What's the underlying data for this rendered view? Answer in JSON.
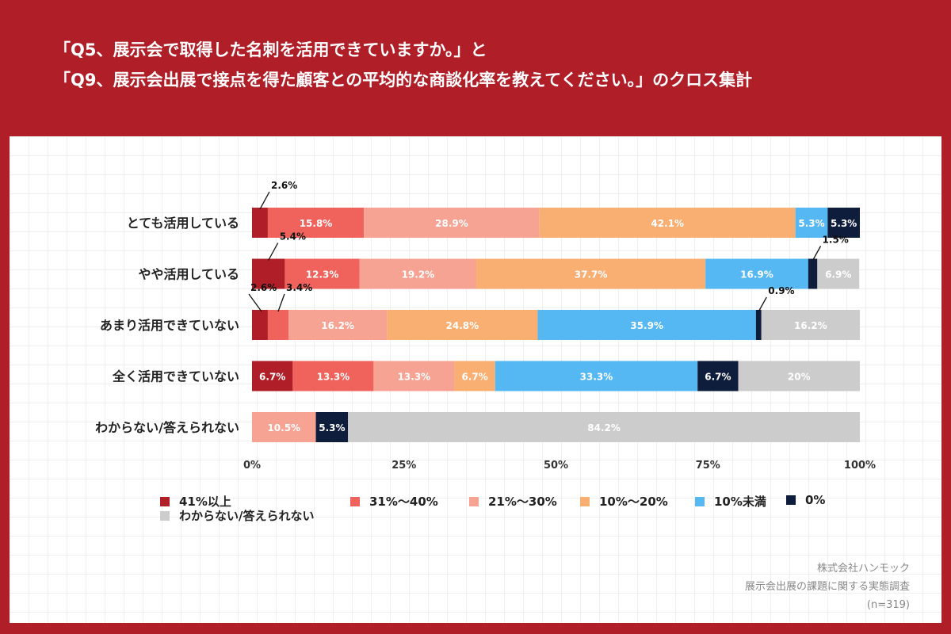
{
  "title": {
    "line1": "「Q5、展示会で取得した名刺を活用できていますか。」と",
    "line2": "「Q9、展示会出展で接点を得た顧客との平均的な商談化率を教えてください。」のクロス集計"
  },
  "chart_data": {
    "type": "bar",
    "orientation": "horizontal",
    "stacked": true,
    "categories": [
      "とても活用している",
      "やや活用している",
      "あまり活用できていない",
      "全く活用できていない",
      "わからない/答えられない"
    ],
    "series": [
      {
        "name": "41%以上",
        "color": "#b01f28",
        "values": [
          2.6,
          5.4,
          2.6,
          6.7,
          0
        ],
        "labels": [
          "2.6%",
          "5.4%",
          "2.6%",
          "6.7%",
          ""
        ]
      },
      {
        "name": "31%〜40%",
        "color": "#f0635c",
        "values": [
          15.8,
          12.3,
          3.4,
          13.3,
          0
        ],
        "labels": [
          "15.8%",
          "12.3%",
          "3.4%",
          "13.3%",
          ""
        ]
      },
      {
        "name": "21%〜30%",
        "color": "#f7a394",
        "values": [
          28.9,
          19.2,
          16.2,
          13.3,
          10.5
        ],
        "labels": [
          "28.9%",
          "19.2%",
          "16.2%",
          "13.3%",
          "10.5%"
        ]
      },
      {
        "name": "10%〜20%",
        "color": "#f9ae72",
        "values": [
          42.1,
          37.7,
          24.8,
          6.7,
          0
        ],
        "labels": [
          "42.1%",
          "37.7%",
          "24.8%",
          "6.7%",
          ""
        ]
      },
      {
        "name": "10%未満",
        "color": "#55b8f3",
        "values": [
          5.3,
          16.9,
          35.9,
          33.3,
          0
        ],
        "labels": [
          "5.3%",
          "16.9%",
          "35.9%",
          "33.3%",
          ""
        ]
      },
      {
        "name": "0%",
        "color": "#0f1d3c",
        "values": [
          5.3,
          1.5,
          0.9,
          6.7,
          5.3
        ],
        "labels": [
          "5.3%",
          "1.5%",
          "0.9%",
          "6.7%",
          "5.3%"
        ]
      },
      {
        "name": "わからない/答えられない",
        "color": "#cccccc",
        "values": [
          0,
          6.9,
          16.2,
          20,
          84.2
        ],
        "labels": [
          "",
          "6.9%",
          "16.2%",
          "20%",
          "84.2%"
        ]
      }
    ],
    "xlim": [
      0,
      100
    ],
    "xticks": [
      "0%",
      "25%",
      "50%",
      "75%",
      "100%"
    ],
    "legend_position": "bottom"
  },
  "source": {
    "company": "株式会社ハンモック",
    "survey": "展示会出展の課題に関する実態調査",
    "sample": "(n=319)"
  }
}
